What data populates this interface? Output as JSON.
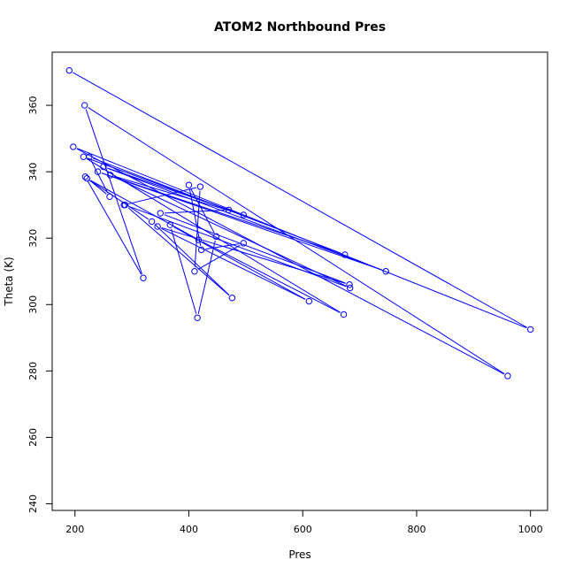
{
  "chart_data": {
    "type": "scatter",
    "title": "ATOM2 Northbound Pres",
    "xlabel": "Pres",
    "ylabel": "Theta (K)",
    "xlim": [
      160,
      1030
    ],
    "ylim": [
      238,
      376
    ],
    "xticks": [
      200,
      400,
      600,
      800,
      1000
    ],
    "yticks": [
      240,
      260,
      280,
      300,
      320,
      340,
      360
    ],
    "grid": false,
    "color": "#0000ff",
    "series": [
      {
        "x": [
          190,
          1000,
          197,
          960,
          217,
          320,
          218,
          261,
          225,
          674,
          240,
          746,
          250,
          496,
          262,
          683,
          288,
          476,
          335,
          221,
          417,
          672,
          215,
          470,
          350,
          682,
          345,
          611,
          367,
          415,
          448,
          400,
          422,
          496,
          410,
          420,
          286
        ],
        "y": [
          370.5,
          292.5,
          347.5,
          278.5,
          360,
          308,
          338.5,
          332.5,
          344.5,
          315,
          340,
          310,
          341.5,
          327,
          339,
          305,
          330,
          302,
          325,
          338,
          319.5,
          297,
          344.5,
          328.5,
          327.5,
          306,
          323.5,
          301,
          324,
          296,
          320.5,
          336,
          316.5,
          318.5,
          310,
          335.5,
          330
        ]
      }
    ]
  }
}
